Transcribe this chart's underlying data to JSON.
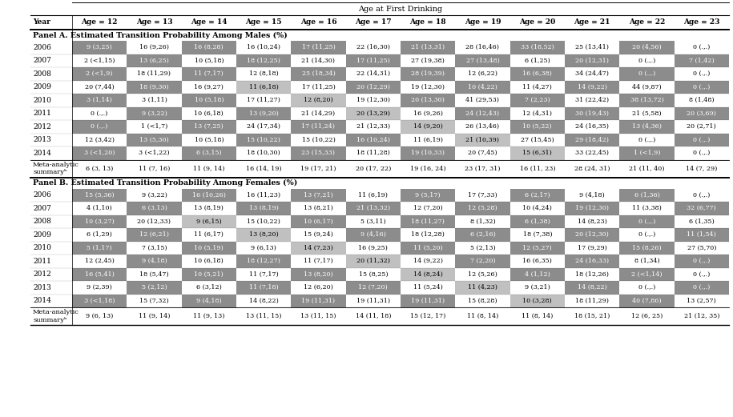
{
  "title": "Age at First Drinking",
  "col_header": [
    "Year",
    "Age = 12",
    "Age = 13",
    "Age = 14",
    "Age = 15",
    "Age = 16",
    "Age = 17",
    "Age = 18",
    "Age = 19",
    "Age = 20",
    "Age = 21",
    "Age = 22",
    "Age = 23"
  ],
  "panel_a_label": "Panel A. Estimated Transition Probability Among Males (%)",
  "panel_b_label": "Panel B. Estimated Transition Probability Among Females (%)",
  "panel_a_rows": [
    [
      "2006",
      "9 (3,25)",
      "16 (9,26)",
      "16 (8,28)",
      "16 (10,24)",
      "17 (11,25)",
      "22 (16,30)",
      "21 (13,31)",
      "28 (16,46)",
      "33 (18,52)",
      "25 (13,41)",
      "20 (4,56)",
      "0 (.,.)"
    ],
    [
      "2007",
      "2 (<1,15)",
      "13 (6,25)",
      "10 (5,18)",
      "18 (12,25)",
      "21 (14,30)",
      "17 (11,25)",
      "27 (19,38)",
      "27 (13,48)",
      "6 (1,25)",
      "20 (12,31)",
      "0 (.,.)",
      "7 (1,42)"
    ],
    [
      "2008",
      "2 (<1,9)",
      "18 (11,29)",
      "11 (7,17)",
      "12 (8,18)",
      "25 (18,34)",
      "22 (14,31)",
      "28 (19,39)",
      "12 (6,22)",
      "16 (6,38)",
      "34 (24,47)",
      "0 (.,.)",
      "0 (.,.)"
    ],
    [
      "2009",
      "20 (7,44)",
      "18 (9,30)",
      "16 (9,27)",
      "11 (6,18)",
      "17 (11,25)",
      "20 (12,29)",
      "19 (12,30)",
      "10 (4,22)",
      "11 (4,27)",
      "14 (9,22)",
      "44 (9,87)",
      "0 (.,.)"
    ],
    [
      "2010",
      "3 (1,14)",
      "3 (1,11)",
      "10 (5,18)",
      "17 (11,27)",
      "12 (8,20)",
      "19 (12,30)",
      "20 (13,30)",
      "41 (29,53)",
      "7 (2,23)",
      "31 (22,42)",
      "38 (13,72)",
      "8 (1,48)"
    ],
    [
      "2011",
      "0 (.,.)",
      "9 (3,22)",
      "10 (6,18)",
      "13 (9,20)",
      "21 (14,29)",
      "20 (13,29)",
      "16 (9,26)",
      "24 (12,43)",
      "12 (4,31)",
      "30 (19,43)",
      "21 (5,58)",
      "20 (3,69)"
    ],
    [
      "2012",
      "0 (.,.)",
      "1 (<1,7)",
      "13 (7,25)",
      "24 (17,34)",
      "17 (11,24)",
      "21 (12,33)",
      "14 (9,20)",
      "26 (13,46)",
      "10 (5,22)",
      "24 (16,35)",
      "13 (4,36)",
      "20 (2,71)"
    ],
    [
      "2013",
      "12 (3,42)",
      "13 (5,30)",
      "10 (5,18)",
      "15 (10,22)",
      "15 (10,22)",
      "16 (10,24)",
      "11 (6,19)",
      "21 (10,39)",
      "27 (15,45)",
      "29 (18,42)",
      "0 (.,.)",
      "0 (.,.)"
    ],
    [
      "2014",
      "3 (<1,20)",
      "3 (<1,22)",
      "6 (3,15)",
      "18 (10,30)",
      "23 (15,33)",
      "18 (11,28)",
      "19 (10,33)",
      "20 (7,45)",
      "15 (6,31)",
      "33 (22,45)",
      "1 (<1,9)",
      "0 (.,.)"
    ],
    [
      "Meta-analytic\nsummaryᵇ",
      "6 (3, 13)",
      "11 (7, 16)",
      "11 (9, 14)",
      "16 (14, 19)",
      "19 (17, 21)",
      "20 (17, 22)",
      "19 (16, 24)",
      "23 (17, 31)",
      "16 (11, 23)",
      "28 (24, 31)",
      "21 (11, 40)",
      "14 (7, 29)"
    ]
  ],
  "panel_b_rows": [
    [
      "2006",
      "15 (5,36)",
      "9 (3,22)",
      "16 (10,26)",
      "16 (11,23)",
      "13 (7,21)",
      "11 (6,19)",
      "9 (5,17)",
      "17 (7,33)",
      "6 (2,17)",
      "9 (4,18)",
      "6 (1,36)",
      "0 (.,.)"
    ],
    [
      "2007",
      "4 (1,10)",
      "6 (3,13)",
      "13 (8,19)",
      "13 (8,19)",
      "13 (8,21)",
      "21 (13,32)",
      "12 (7,20)",
      "12 (5,28)",
      "10 (4,24)",
      "19 (12,30)",
      "11 (3,38)",
      "32 (6,77)"
    ],
    [
      "2008",
      "10 (3,27)",
      "20 (12,33)",
      "9 (6,15)",
      "15 (10,22)",
      "10 (6,17)",
      "5 (3,11)",
      "18 (11,27)",
      "8 (1,32)",
      "6 (1,38)",
      "14 (8,23)",
      "0 (.,.)",
      "6 (1,35)"
    ],
    [
      "2009",
      "6 (1,29)",
      "12 (6,21)",
      "11 (6,17)",
      "13 (8,20)",
      "15 (9,24)",
      "9 (4,16)",
      "18 (12,28)",
      "6 (2,16)",
      "18 (7,38)",
      "20 (12,30)",
      "0 (.,.)",
      "11 (1,54)"
    ],
    [
      "2010",
      "5 (1,17)",
      "7 (3,15)",
      "10 (5,19)",
      "9 (6,13)",
      "14 (7,23)",
      "16 (9,25)",
      "11 (5,20)",
      "5 (2,13)",
      "12 (5,27)",
      "17 (9,29)",
      "15 (8,26)",
      "27 (5,70)"
    ],
    [
      "2011",
      "12 (2,45)",
      "9 (4,18)",
      "10 (6,18)",
      "18 (12,27)",
      "11 (7,17)",
      "20 (11,32)",
      "14 (9,22)",
      "7 (2,20)",
      "16 (6,35)",
      "24 (16,33)",
      "8 (1,34)",
      "0 (.,.)"
    ],
    [
      "2012",
      "16 (5,41)",
      "18 (5,47)",
      "10 (5,21)",
      "11 (7,17)",
      "13 (8,20)",
      "15 (8,25)",
      "14 (8,24)",
      "12 (5,26)",
      "4 (1,12)",
      "18 (12,26)",
      "2 (<1,14)",
      "0 (.,.)"
    ],
    [
      "2013",
      "9 (2,39)",
      "5 (2,12)",
      "6 (3,12)",
      "11 (7,18)",
      "12 (6,20)",
      "12 (7,20)",
      "11 (5,24)",
      "11 (4,23)",
      "9 (3,21)",
      "14 (8,22)",
      "0 (.,.)",
      "0 (.,.)"
    ],
    [
      "2014",
      "3 (<1,18)",
      "15 (7,32)",
      "9 (4,18)",
      "14 (8,22)",
      "19 (11,31)",
      "19 (11,31)",
      "19 (11,31)",
      "15 (8,28)",
      "10 (3,28)",
      "18 (11,29)",
      "40 (7,86)",
      "13 (2,57)"
    ],
    [
      "Meta-analytic\nsummaryᵇ",
      "9 (6, 13)",
      "11 (9, 14)",
      "11 (9, 13)",
      "13 (11, 15)",
      "13 (11, 15)",
      "14 (11, 18)",
      "15 (12, 17)",
      "11 (8, 14)",
      "11 (8, 14)",
      "18 (15, 21)",
      "12 (6, 25)",
      "21 (12, 35)"
    ]
  ],
  "dark_gray": "#8c8c8c",
  "light_gray": "#c0c0c0",
  "white": "#ffffff"
}
